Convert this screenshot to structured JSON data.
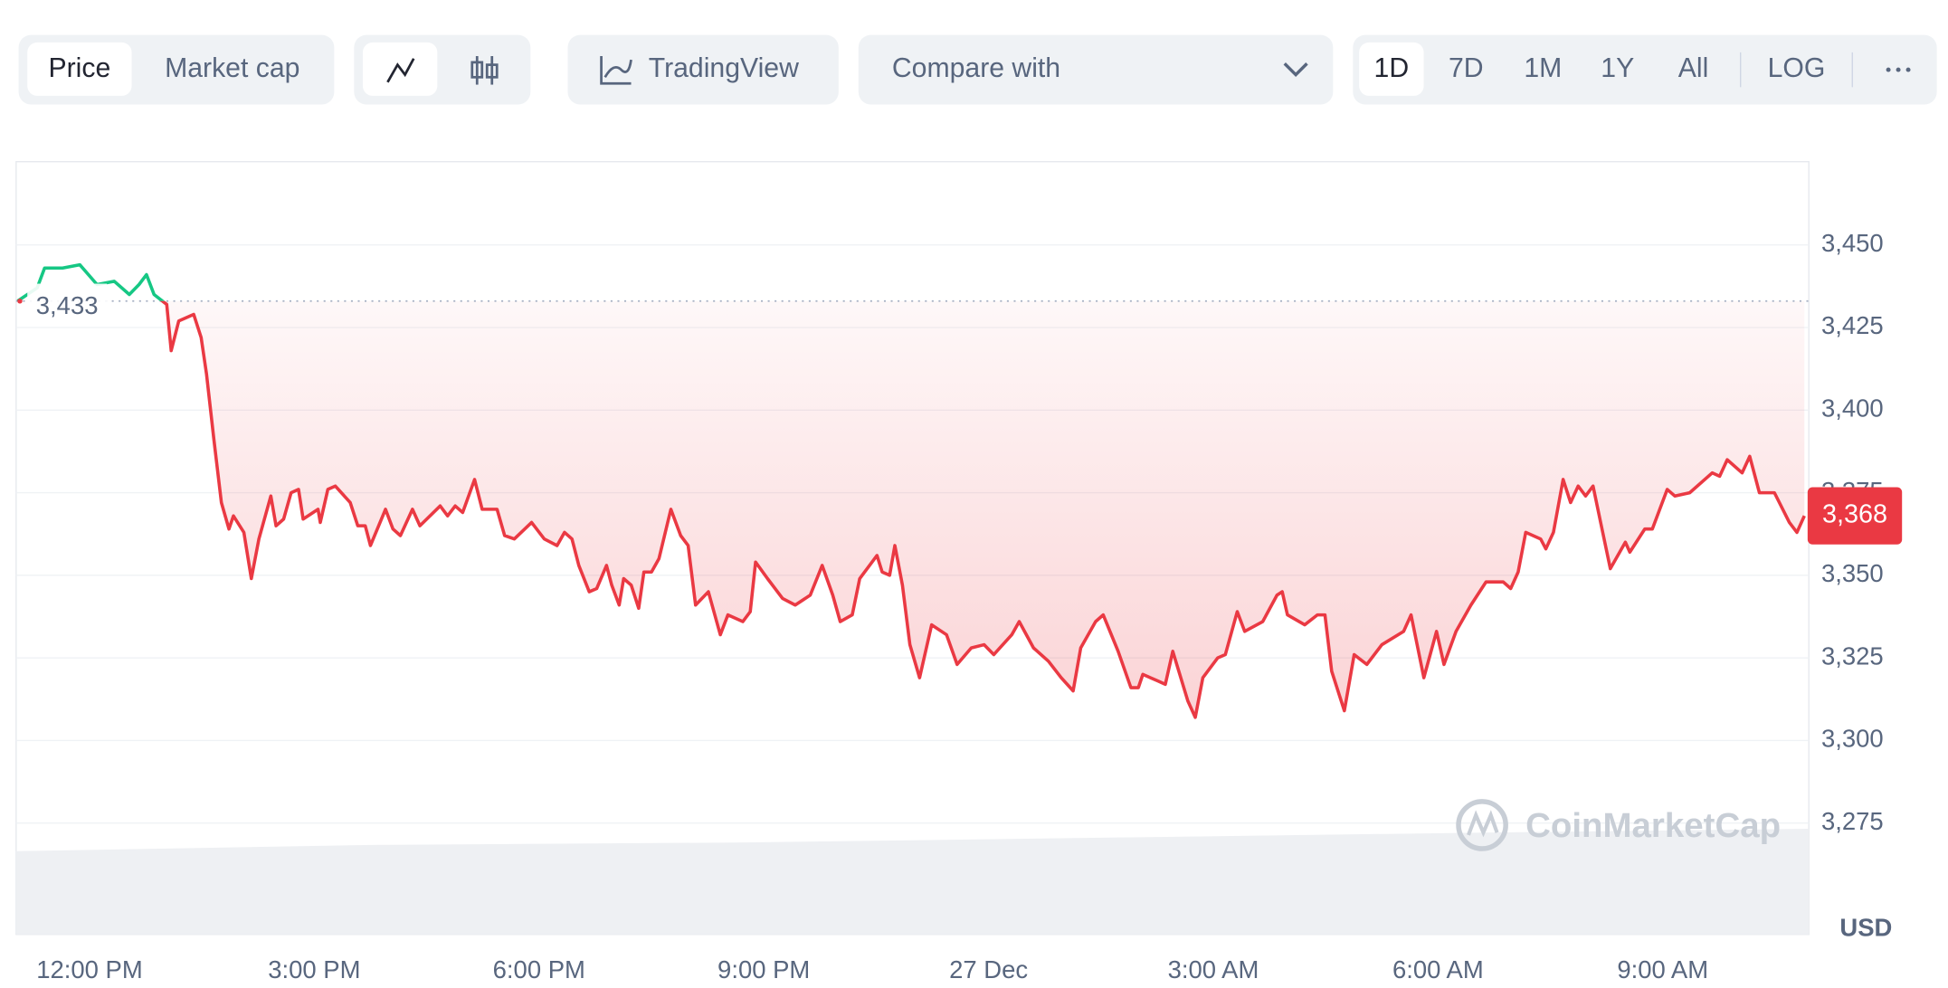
{
  "toolbar": {
    "type_tabs": [
      "Price",
      "Market cap"
    ],
    "tools": [
      "TradingView"
    ],
    "compare": "Compare with",
    "ranges": [
      "1D",
      "7D",
      "1M",
      "1Y",
      "All"
    ],
    "scale": "LOG"
  },
  "chart_data": {
    "type": "line",
    "up_color": "#16c784",
    "down_color": "#ea3943",
    "unit": "USD",
    "watermark": "CoinMarketCap",
    "grid": true,
    "xlim": [
      11.02,
      34.95
    ],
    "ylim": [
      3241.3,
      3475.2
    ],
    "xticks": [
      {
        "value": 12,
        "label": "12:00 PM"
      },
      {
        "value": 15,
        "label": "3:00 PM"
      },
      {
        "value": 18,
        "label": "6:00 PM"
      },
      {
        "value": 21,
        "label": "9:00 PM"
      },
      {
        "value": 24,
        "label": "27 Dec"
      },
      {
        "value": 27,
        "label": "3:00 AM"
      },
      {
        "value": 30,
        "label": "6:00 AM"
      },
      {
        "value": 33,
        "label": "9:00 AM"
      }
    ],
    "yticks": [
      {
        "value": 3275,
        "label": "3,275"
      },
      {
        "value": 3300,
        "label": "3,300"
      },
      {
        "value": 3325,
        "label": "3,325"
      },
      {
        "value": 3350,
        "label": "3,350"
      },
      {
        "value": 3375,
        "label": "3,375"
      },
      {
        "value": 3400,
        "label": "3,400"
      },
      {
        "value": 3425,
        "label": "3,425"
      },
      {
        "value": 3450,
        "label": "3,450"
      }
    ],
    "annotations": [
      {
        "value": 3433,
        "label": "3,433"
      },
      {
        "value": 3368,
        "label": "3,368"
      }
    ],
    "x": [
      11.04,
      11.3,
      11.4,
      11.64,
      11.87,
      12.1,
      12.33,
      12.53,
      12.66,
      12.76,
      12.86,
      13.03,
      13.09,
      13.19,
      13.39,
      13.49,
      13.56,
      13.66,
      13.76,
      13.86,
      13.92,
      14.06,
      14.16,
      14.26,
      14.42,
      14.49,
      14.59,
      14.69,
      14.79,
      14.85,
      15.05,
      15.08,
      15.18,
      15.28,
      15.48,
      15.58,
      15.68,
      15.75,
      15.95,
      16.05,
      16.15,
      16.31,
      16.41,
      16.68,
      16.78,
      16.88,
      16.98,
      17.14,
      17.24,
      17.44,
      17.54,
      17.67,
      17.9,
      18.07,
      18.24,
      18.34,
      18.44,
      18.53,
      18.67,
      18.77,
      18.9,
      18.97,
      19.07,
      19.13,
      19.23,
      19.33,
      19.4,
      19.5,
      19.6,
      19.76,
      19.89,
      19.99,
      20.09,
      20.26,
      20.42,
      20.52,
      20.72,
      20.82,
      20.89,
      21.05,
      21.25,
      21.42,
      21.62,
      21.78,
      21.92,
      22.02,
      22.18,
      22.28,
      22.51,
      22.58,
      22.68,
      22.75,
      22.85,
      22.95,
      23.08,
      23.24,
      23.44,
      23.58,
      23.77,
      23.94,
      24.07,
      24.31,
      24.41,
      24.6,
      24.8,
      24.97,
      25.13,
      25.23,
      25.43,
      25.53,
      25.73,
      25.9,
      26.0,
      26.06,
      26.26,
      26.36,
      26.46,
      26.66,
      26.76,
      26.86,
      27.06,
      27.16,
      27.32,
      27.42,
      27.66,
      27.85,
      27.92,
      27.99,
      28.22,
      28.39,
      28.49,
      28.58,
      28.75,
      28.88,
      29.05,
      29.25,
      29.54,
      29.64,
      29.81,
      29.98,
      30.08,
      30.24,
      30.44,
      30.64,
      30.87,
      30.97,
      31.07,
      31.17,
      31.37,
      31.44,
      31.54,
      31.67,
      31.77,
      31.87,
      31.97,
      32.07,
      32.17,
      32.3,
      32.5,
      32.56,
      32.76,
      32.86,
      33.06,
      33.16,
      33.36,
      33.66,
      33.76,
      33.86,
      34.06,
      34.16,
      34.29,
      34.49,
      34.69,
      34.79,
      34.89
    ],
    "values": [
      3433,
      3437,
      3443,
      3443,
      3444,
      3438,
      3439,
      3435,
      3438,
      3441,
      3435,
      3432,
      3418,
      3427,
      3429,
      3422,
      3411,
      3391,
      3372,
      3364,
      3368,
      3363,
      3349,
      3361,
      3374,
      3365,
      3367,
      3375,
      3376,
      3367,
      3370,
      3366,
      3376,
      3377,
      3372,
      3365,
      3365,
      3359,
      3370,
      3364,
      3362,
      3370,
      3365,
      3371,
      3368,
      3371,
      3369,
      3379,
      3370,
      3370,
      3362,
      3361,
      3366,
      3361,
      3359,
      3363,
      3361,
      3353,
      3345,
      3346,
      3353,
      3347,
      3341,
      3349,
      3347,
      3340,
      3351,
      3351,
      3355,
      3370,
      3362,
      3359,
      3341,
      3345,
      3332,
      3338,
      3336,
      3339,
      3354,
      3349,
      3343,
      3341,
      3344,
      3353,
      3344,
      3336,
      3338,
      3349,
      3356,
      3351,
      3350,
      3359,
      3347,
      3329,
      3319,
      3335,
      3332,
      3323,
      3328,
      3329,
      3326,
      3332,
      3336,
      3328,
      3324,
      3319,
      3315,
      3328,
      3336,
      3338,
      3327,
      3316,
      3316,
      3320,
      3318,
      3317,
      3327,
      3312,
      3307,
      3319,
      3325,
      3326,
      3339,
      3333,
      3336,
      3344,
      3345,
      3338,
      3335,
      3338,
      3338,
      3321,
      3309,
      3326,
      3323,
      3329,
      3333,
      3338,
      3319,
      3333,
      3323,
      3333,
      3341,
      3348,
      3348,
      3346,
      3351,
      3363,
      3361,
      3358,
      3363,
      3379,
      3372,
      3377,
      3374,
      3377,
      3366,
      3352,
      3360,
      3357,
      3364,
      3364,
      3376,
      3374,
      3375,
      3381,
      3380,
      3385,
      3381,
      3386,
      3375,
      3375,
      3366,
      3363,
      3368
    ]
  }
}
